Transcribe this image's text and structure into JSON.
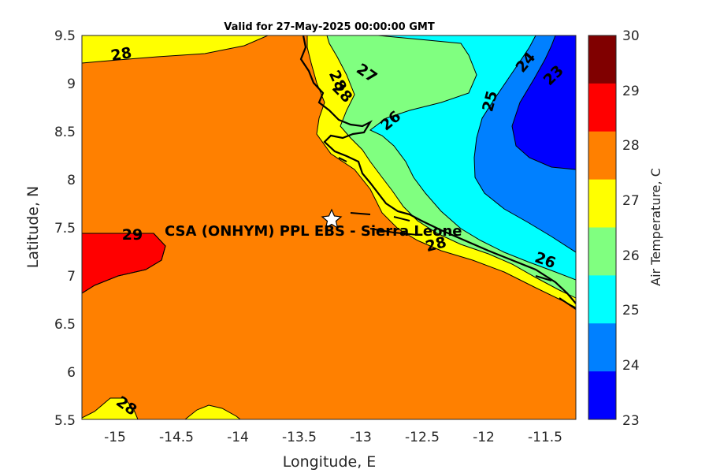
{
  "title": "Valid for 27-May-2025 00:00:00 GMT",
  "xlabel": "Longitude, E",
  "ylabel": "Latitude, N",
  "x_ticks": [
    "-15",
    "-14.5",
    "-14",
    "-13.5",
    "-13",
    "-12.5",
    "-12",
    "-11.5"
  ],
  "y_ticks": [
    "9.5",
    "9",
    "8.5",
    "8",
    "7.5",
    "7",
    "6.5",
    "6",
    "5.5"
  ],
  "site_label": "CSA (ONHYM) PPL EBS  - Sierra Leone",
  "contour_labels": [
    "28",
    "28",
    "27",
    "28",
    "26",
    "25",
    "24",
    "23",
    "29",
    "28",
    "28",
    "26",
    "28"
  ],
  "colorbar": {
    "label": "Air Temperature, C",
    "ticks": [
      "30",
      "29",
      "28",
      "27",
      "26",
      "25",
      "24",
      "23"
    ],
    "colors": [
      "#800000",
      "#ff0000",
      "#ff8000",
      "#ffff00",
      "#80ff80",
      "#00ffff",
      "#0080ff",
      "#0000ff"
    ]
  },
  "map": {
    "lon_range": [
      -15.25,
      -11.25
    ],
    "lat_range": [
      5.5,
      9.5
    ],
    "site_lon": -13.25,
    "site_lat": 7.6
  }
}
